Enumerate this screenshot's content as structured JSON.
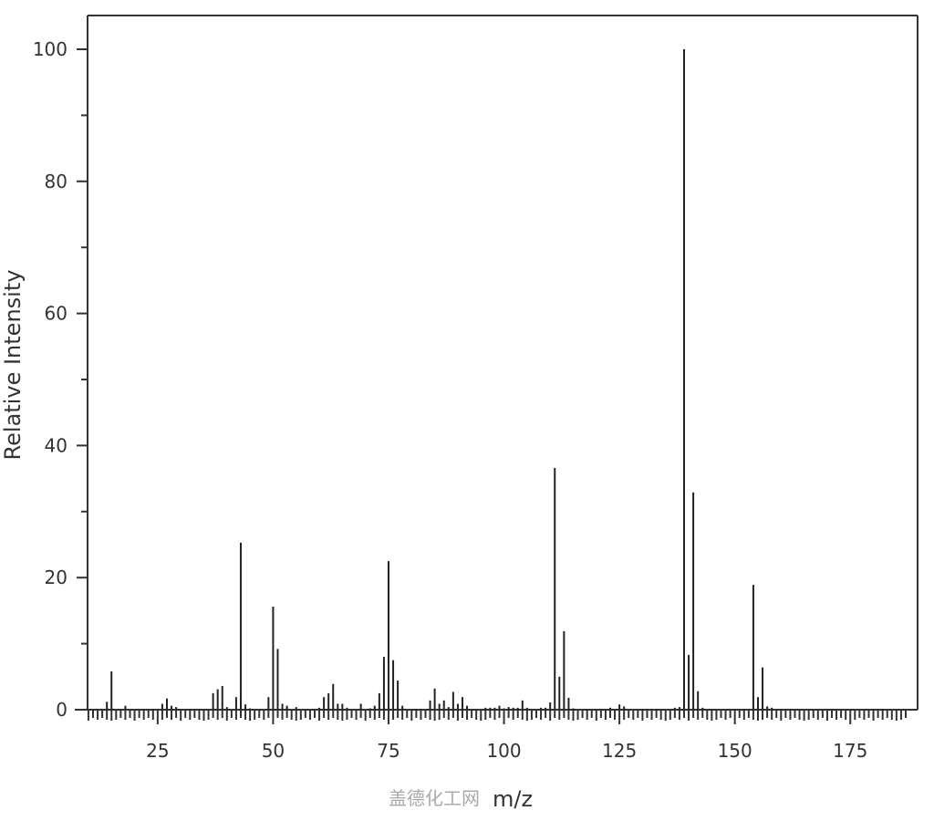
{
  "chart_data": {
    "type": "bar",
    "xlabel": "m/z",
    "ylabel": "Relative Intensity",
    "xlim": [
      10,
      191
    ],
    "ylim": [
      0,
      104
    ],
    "x_ticks": [
      25,
      50,
      75,
      100,
      125,
      150,
      175
    ],
    "y_ticks": [
      0,
      20,
      40,
      60,
      80,
      100
    ],
    "grid": false,
    "mz": [
      14,
      15,
      18,
      26,
      27,
      28,
      29,
      37,
      38,
      39,
      40,
      42,
      43,
      44,
      45,
      49,
      50,
      51,
      52,
      53,
      55,
      60,
      61,
      62,
      63,
      64,
      65,
      66,
      69,
      71,
      72,
      73,
      74,
      75,
      76,
      77,
      78,
      84,
      85,
      86,
      87,
      88,
      89,
      90,
      91,
      92,
      96,
      97,
      98,
      99,
      100,
      101,
      102,
      103,
      104,
      105,
      108,
      109,
      110,
      111,
      112,
      113,
      114,
      115,
      123,
      125,
      126,
      137,
      138,
      139,
      140,
      141,
      142,
      143,
      154,
      155,
      156,
      157,
      158
    ],
    "intensity": [
      1.2,
      5.8,
      0.6,
      0.9,
      1.7,
      0.6,
      0.4,
      2.5,
      3.1,
      3.6,
      0.4,
      1.9,
      25.3,
      0.8,
      0.2,
      1.9,
      15.6,
      9.2,
      0.9,
      0.6,
      0.4,
      0.3,
      1.9,
      2.5,
      3.9,
      0.9,
      0.9,
      0.3,
      0.9,
      0.2,
      0.6,
      2.5,
      8.0,
      22.5,
      7.5,
      4.4,
      0.6,
      1.4,
      3.2,
      0.9,
      1.4,
      0.4,
      2.7,
      0.9,
      1.9,
      0.6,
      0.3,
      0.3,
      0.3,
      0.6,
      0.2,
      0.4,
      0.3,
      0.3,
      1.4,
      0.3,
      0.3,
      0.3,
      1.1,
      36.6,
      5.0,
      11.9,
      1.8,
      0.2,
      0.3,
      0.8,
      0.5,
      0.3,
      0.4,
      100,
      8.3,
      32.9,
      2.8,
      0.3,
      18.9,
      1.9,
      6.4,
      0.5,
      0.3
    ],
    "bar_color": "#222222"
  },
  "watermark": "盖德化工网"
}
